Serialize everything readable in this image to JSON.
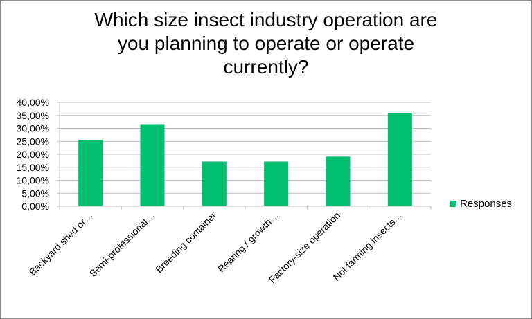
{
  "chart_data": {
    "type": "bar",
    "title": "Which size insect industry operation are you planning to operate or operate currently?",
    "title_lines": [
      "Which size insect industry operation are",
      "you planning to operate or operate",
      "currently?"
    ],
    "categories": [
      "Backyard shed or…",
      "Semi-professional…",
      "Breeding container",
      "Rearing / growth…",
      "Factory-size operation",
      "Not farming insects…"
    ],
    "series": [
      {
        "name": "Responses",
        "color": "#00bf6f",
        "values": [
          25.6,
          31.6,
          17.2,
          17.2,
          19.1,
          36.0
        ]
      }
    ],
    "xlabel": "",
    "ylabel": "",
    "ylim": [
      0,
      40
    ],
    "yticks": [
      "0,00%",
      "5,00%",
      "10,00%",
      "15,00%",
      "20,00%",
      "25,00%",
      "30,00%",
      "35,00%",
      "40,00%"
    ],
    "grid": true,
    "legend_position": "right"
  },
  "legend": {
    "label": "Responses"
  }
}
